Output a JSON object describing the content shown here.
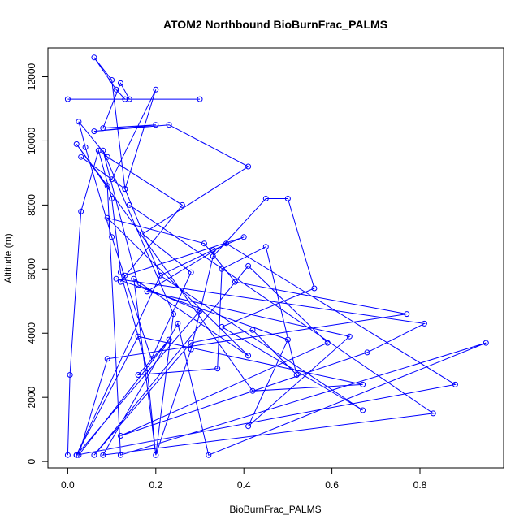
{
  "chart_data": {
    "type": "line",
    "title": "ATOM2 Northbound BioBurnFrac_PALMS",
    "xlabel": "BioBurnFrac_PALMS",
    "ylabel": "Altitude (m)",
    "xlim": [
      -0.045,
      0.99
    ],
    "ylim": [
      -200,
      12900
    ],
    "x_ticks": [
      0.0,
      0.2,
      0.4,
      0.6,
      0.8
    ],
    "x_tick_labels": [
      "0.0",
      "0.2",
      "0.4",
      "0.6",
      "0.8"
    ],
    "y_ticks": [
      0,
      2000,
      4000,
      6000,
      8000,
      10000,
      12000
    ],
    "y_tick_labels": [
      "0",
      "2000",
      "4000",
      "6000",
      "8000",
      "10000",
      "12000"
    ],
    "grid": false,
    "legend": "none",
    "line_color": "#0000ff",
    "marker": "open-circle",
    "series": [
      {
        "points": [
          [
            0.0,
            200
          ],
          [
            0.005,
            2700
          ],
          [
            0.03,
            7800
          ],
          [
            0.07,
            9700
          ],
          [
            0.1,
            8200
          ],
          [
            0.12,
            5900
          ],
          [
            0.18,
            2900
          ],
          [
            0.2,
            200
          ],
          [
            0.28,
            3500
          ],
          [
            0.33,
            6400
          ],
          [
            0.45,
            8200
          ],
          [
            0.5,
            8200
          ],
          [
            0.56,
            5400
          ],
          [
            0.35,
            4200
          ],
          [
            0.67,
            1600
          ],
          [
            0.21,
            5800
          ],
          [
            0.13,
            8500
          ],
          [
            0.2,
            11600
          ],
          [
            0.1,
            8800
          ],
          [
            0.03,
            9500
          ],
          [
            0.13,
            8500
          ],
          [
            0.1,
            11900
          ],
          [
            0.06,
            12600
          ],
          [
            0.11,
            11600
          ],
          [
            0.13,
            11300
          ],
          [
            0.0,
            11300
          ],
          [
            0.3,
            11300
          ],
          [
            0.14,
            11300
          ],
          [
            0.12,
            11800
          ],
          [
            0.08,
            10400
          ],
          [
            0.2,
            10500
          ],
          [
            0.06,
            10300
          ],
          [
            0.23,
            10500
          ],
          [
            0.41,
            9200
          ],
          [
            0.17,
            7100
          ],
          [
            0.28,
            5900
          ],
          [
            0.19,
            3200
          ],
          [
            0.1,
            7000
          ],
          [
            0.04,
            9800
          ],
          [
            0.025,
            10600
          ],
          [
            0.09,
            9500
          ],
          [
            0.26,
            8000
          ],
          [
            0.12,
            5600
          ],
          [
            0.13,
            5800
          ],
          [
            0.4,
            7000
          ],
          [
            0.33,
            6600
          ],
          [
            0.21,
            5800
          ],
          [
            0.02,
            200
          ],
          [
            0.3,
            4700
          ],
          [
            0.16,
            5500
          ],
          [
            0.08,
            9700
          ],
          [
            0.24,
            4600
          ],
          [
            0.2,
            200
          ],
          [
            0.15,
            5700
          ],
          [
            0.41,
            3300
          ],
          [
            0.09,
            7600
          ],
          [
            0.31,
            6800
          ],
          [
            0.38,
            5600
          ],
          [
            0.77,
            4600
          ],
          [
            0.09,
            3200
          ],
          [
            0.025,
            200
          ],
          [
            0.23,
            3800
          ],
          [
            0.16,
            2700
          ],
          [
            0.34,
            2900
          ],
          [
            0.35,
            6000
          ],
          [
            0.45,
            6700
          ],
          [
            0.52,
            2700
          ],
          [
            0.42,
            4100
          ],
          [
            0.28,
            3700
          ],
          [
            0.06,
            200
          ],
          [
            0.41,
            6100
          ],
          [
            0.59,
            3700
          ],
          [
            0.12,
            800
          ],
          [
            0.68,
            3400
          ],
          [
            0.81,
            4300
          ],
          [
            0.11,
            5700
          ],
          [
            0.5,
            3800
          ],
          [
            0.41,
            1100
          ],
          [
            0.64,
            3900
          ],
          [
            0.18,
            5300
          ],
          [
            0.36,
            6800
          ],
          [
            0.88,
            2400
          ],
          [
            0.02,
            200
          ],
          [
            0.16,
            3900
          ],
          [
            0.67,
            2400
          ],
          [
            0.42,
            2200
          ],
          [
            0.02,
            9900
          ],
          [
            0.09,
            8600
          ],
          [
            0.12,
            200
          ],
          [
            0.95,
            3700
          ],
          [
            0.32,
            200
          ],
          [
            0.25,
            4300
          ],
          [
            0.08,
            200
          ],
          [
            0.83,
            1500
          ],
          [
            0.14,
            8000
          ]
        ]
      }
    ]
  }
}
